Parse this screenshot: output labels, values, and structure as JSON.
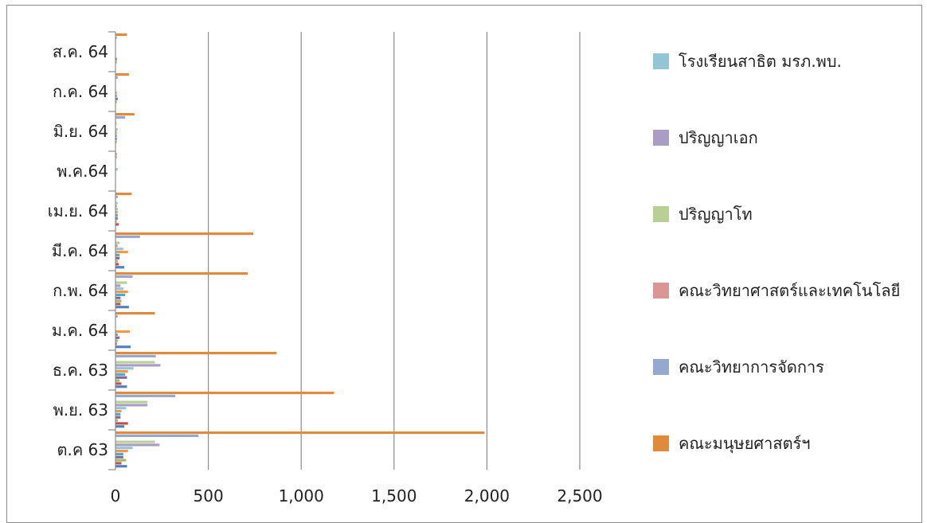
{
  "chart_data": {
    "type": "bar",
    "orientation": "horizontal",
    "categories": [
      "ต.ค 63",
      "พ.ย. 63",
      "ธ.ค. 63",
      "ม.ค. 64",
      "ก.พ. 64",
      "มี.ค. 64",
      "เม.ย. 64",
      "พ.ค.64",
      "มิ.ย. 64",
      "ก.ค. 64",
      "ส.ค. 64"
    ],
    "xlim": [
      0,
      2500
    ],
    "x_ticks": [
      "0",
      "500",
      "1,000",
      "1,500",
      "2,000",
      "2,500"
    ],
    "x_tick_values": [
      0,
      500,
      1000,
      1500,
      2000,
      2500
    ],
    "grid": "vertical major gridlines",
    "legend_position": "right",
    "title": "",
    "xlabel": "",
    "ylabel": "",
    "series_order_bottom_to_top": [
      "s1",
      "s2",
      "s3",
      "s4",
      "s5",
      "s6",
      "s7",
      "s8",
      "s9",
      "s10",
      "s11",
      "s12"
    ],
    "series": [
      {
        "id": "s1",
        "name": "",
        "color": "#4F81BD",
        "values": [
          60,
          45,
          60,
          80,
          70,
          45,
          0,
          0,
          0,
          0,
          0
        ]
      },
      {
        "id": "s2",
        "name": "",
        "color": "#C0504D",
        "values": [
          30,
          65,
          30,
          5,
          25,
          15,
          15,
          0,
          0,
          0,
          0
        ]
      },
      {
        "id": "s3",
        "name": "",
        "color": "#9BBB59",
        "values": [
          55,
          10,
          20,
          10,
          30,
          10,
          5,
          0,
          5,
          5,
          5
        ]
      },
      {
        "id": "s4",
        "name": "",
        "color": "#8064A2",
        "values": [
          40,
          25,
          60,
          20,
          25,
          20,
          10,
          0,
          5,
          10,
          5
        ]
      },
      {
        "id": "s5",
        "name": "",
        "color": "#4BACC6",
        "values": [
          40,
          25,
          50,
          10,
          50,
          20,
          10,
          0,
          5,
          5,
          0
        ]
      },
      {
        "id": "s6",
        "name": "",
        "color": "#F79646",
        "values": [
          65,
          30,
          65,
          75,
          65,
          65,
          10,
          0,
          5,
          5,
          0
        ]
      },
      {
        "id": "s7",
        "name": "โรงเรียนสาธิต มรภ.พบ.",
        "color": "#92C5D8",
        "values": [
          90,
          55,
          95,
          0,
          40,
          40,
          10,
          10,
          10,
          0,
          0
        ]
      },
      {
        "id": "s8",
        "name": "ปริญญาเอก",
        "color": "#A99DC6",
        "values": [
          235,
          170,
          240,
          0,
          25,
          10,
          5,
          0,
          0,
          0,
          0
        ]
      },
      {
        "id": "s9",
        "name": "ปริญญาโท",
        "color": "#B8D093",
        "values": [
          210,
          170,
          210,
          0,
          60,
          20,
          10,
          0,
          5,
          0,
          0
        ]
      },
      {
        "id": "s10",
        "name": "คณะวิทยาศาสตร์และเทคโนโลยี",
        "color": "#D99694",
        "values": [
          0,
          0,
          0,
          0,
          0,
          0,
          0,
          0,
          0,
          0,
          0
        ]
      },
      {
        "id": "s11",
        "name": "คณะวิทยาการจัดการ",
        "color": "#95A8D0",
        "values": [
          445,
          320,
          215,
          10,
          90,
          130,
          10,
          5,
          50,
          10,
          5
        ]
      },
      {
        "id": "s12",
        "name": "คณะมนุษยศาสตร์ฯ",
        "color": "#E08A3C",
        "values": [
          1985,
          1175,
          865,
          210,
          710,
          740,
          85,
          5,
          100,
          70,
          60
        ]
      }
    ],
    "legend": [
      {
        "label": "โรงเรียนสาธิต มรภ.พบ.",
        "color": "#92C5D8"
      },
      {
        "label": "ปริญญาเอก",
        "color": "#A99DC6"
      },
      {
        "label": "ปริญญาโท",
        "color": "#B8D093"
      },
      {
        "label": "คณะวิทยาศาสตร์และเทคโนโลยี",
        "color": "#D99694"
      },
      {
        "label": "คณะวิทยาการจัดการ",
        "color": "#95A8D0"
      },
      {
        "label": "คณะมนุษยศาสตร์ฯ",
        "color": "#E08A3C"
      }
    ]
  }
}
